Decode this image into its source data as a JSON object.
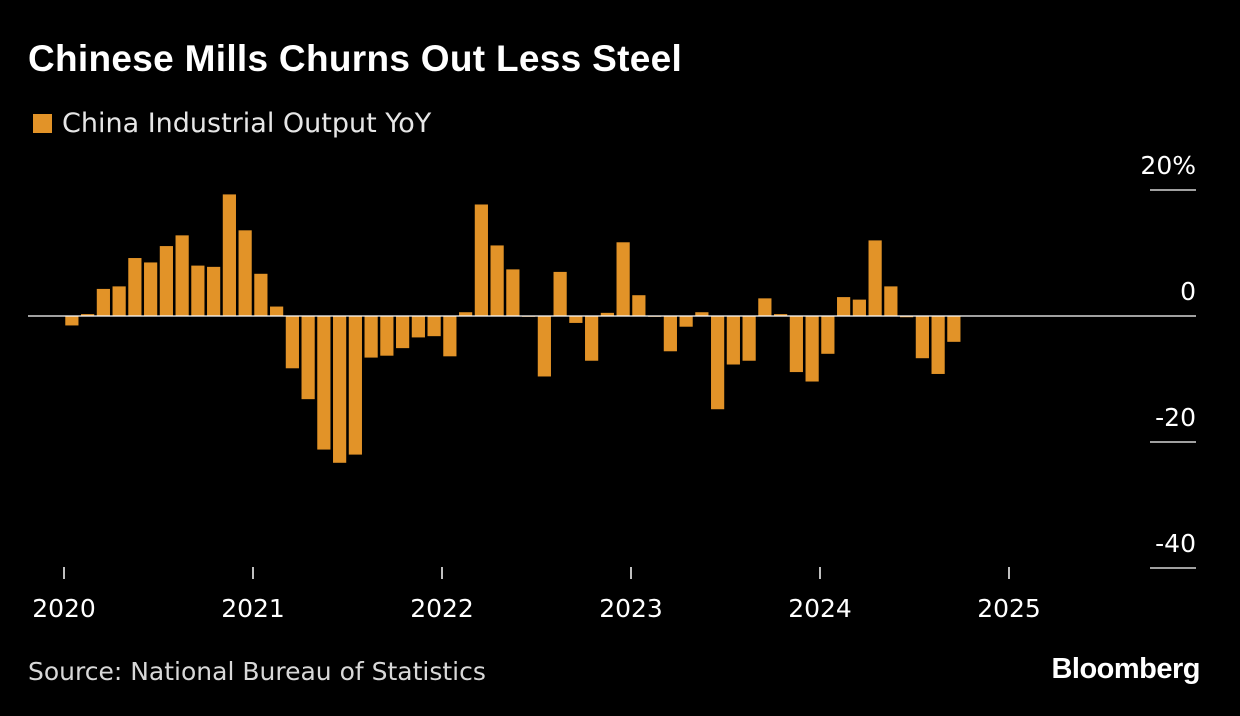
{
  "colors": {
    "background": "#000000",
    "bar": "#e29328",
    "axis": "#ffffff",
    "text": "#ffffff",
    "muted_text": "#d8d8d8"
  },
  "chart_data": {
    "type": "bar",
    "title": "Chinese Mills Churns Out Less Steel",
    "xlabel": "",
    "ylabel": "",
    "legend_placement": "top-left",
    "grid": false,
    "ylim": [
      -40,
      20
    ],
    "y_ticks": [
      {
        "value": 20,
        "label": "20%"
      },
      {
        "value": 0,
        "label": "0"
      },
      {
        "value": -20,
        "label": "-20"
      },
      {
        "value": -40,
        "label": "-40"
      }
    ],
    "x_ticks": [
      "2020",
      "2021",
      "2022",
      "2023",
      "2024",
      "2025"
    ],
    "series": [
      {
        "name": "China Industrial Output YoY",
        "data": [
          {
            "x": "2020-01",
            "y": -1.5
          },
          {
            "x": "2020-02",
            "y": 0.3
          },
          {
            "x": "2020-03",
            "y": 4.3
          },
          {
            "x": "2020-04",
            "y": 4.7
          },
          {
            "x": "2020-05",
            "y": 9.2
          },
          {
            "x": "2020-06",
            "y": 8.5
          },
          {
            "x": "2020-07",
            "y": 11.1
          },
          {
            "x": "2020-08",
            "y": 12.8
          },
          {
            "x": "2020-09",
            "y": 8.0
          },
          {
            "x": "2020-10",
            "y": 7.8
          },
          {
            "x": "2020-11",
            "y": 19.3
          },
          {
            "x": "2020-12",
            "y": 13.6
          },
          {
            "x": "2021-01",
            "y": 6.7
          },
          {
            "x": "2021-02",
            "y": 1.5
          },
          {
            "x": "2021-03",
            "y": -8.3
          },
          {
            "x": "2021-04",
            "y": -13.2
          },
          {
            "x": "2021-05",
            "y": -21.2
          },
          {
            "x": "2021-06",
            "y": -23.3
          },
          {
            "x": "2021-07",
            "y": -22.0
          },
          {
            "x": "2021-08",
            "y": -6.6
          },
          {
            "x": "2021-09",
            "y": -6.3
          },
          {
            "x": "2021-10",
            "y": -5.1
          },
          {
            "x": "2021-11",
            "y": -3.4
          },
          {
            "x": "2021-12",
            "y": -3.2
          },
          {
            "x": "2022-01",
            "y": -6.4
          },
          {
            "x": "2022-02",
            "y": 0.6
          },
          {
            "x": "2022-03",
            "y": 17.7
          },
          {
            "x": "2022-04",
            "y": 11.2
          },
          {
            "x": "2022-05",
            "y": 7.4
          },
          {
            "x": "2022-06",
            "y": 0.0
          },
          {
            "x": "2022-07",
            "y": -9.6
          },
          {
            "x": "2022-08",
            "y": 7.0
          },
          {
            "x": "2022-09",
            "y": -1.1
          },
          {
            "x": "2022-10",
            "y": -7.1
          },
          {
            "x": "2022-11",
            "y": 0.5
          },
          {
            "x": "2022-12",
            "y": 11.7
          },
          {
            "x": "2023-01",
            "y": 3.3
          },
          {
            "x": "2023-02",
            "y": 0.0
          },
          {
            "x": "2023-03",
            "y": -5.6
          },
          {
            "x": "2023-04",
            "y": -1.7
          },
          {
            "x": "2023-05",
            "y": 0.6
          },
          {
            "x": "2023-06",
            "y": -14.8
          },
          {
            "x": "2023-07",
            "y": -7.7
          },
          {
            "x": "2023-08",
            "y": -7.1
          },
          {
            "x": "2023-09",
            "y": 2.8
          },
          {
            "x": "2023-10",
            "y": 0.3
          },
          {
            "x": "2023-11",
            "y": -8.9
          },
          {
            "x": "2023-12",
            "y": -10.4
          },
          {
            "x": "2024-01",
            "y": -6.0
          },
          {
            "x": "2024-02",
            "y": 3.0
          },
          {
            "x": "2024-03",
            "y": 2.6
          },
          {
            "x": "2024-04",
            "y": 12.0
          },
          {
            "x": "2024-05",
            "y": 4.7
          },
          {
            "x": "2024-06",
            "y": -0.2
          },
          {
            "x": "2024-07",
            "y": -6.7
          },
          {
            "x": "2024-08",
            "y": -9.2
          },
          {
            "x": "2024-09",
            "y": -4.1
          }
        ]
      }
    ]
  },
  "source_text": "Source: National Bureau of Statistics",
  "brand_text": "Bloomberg"
}
